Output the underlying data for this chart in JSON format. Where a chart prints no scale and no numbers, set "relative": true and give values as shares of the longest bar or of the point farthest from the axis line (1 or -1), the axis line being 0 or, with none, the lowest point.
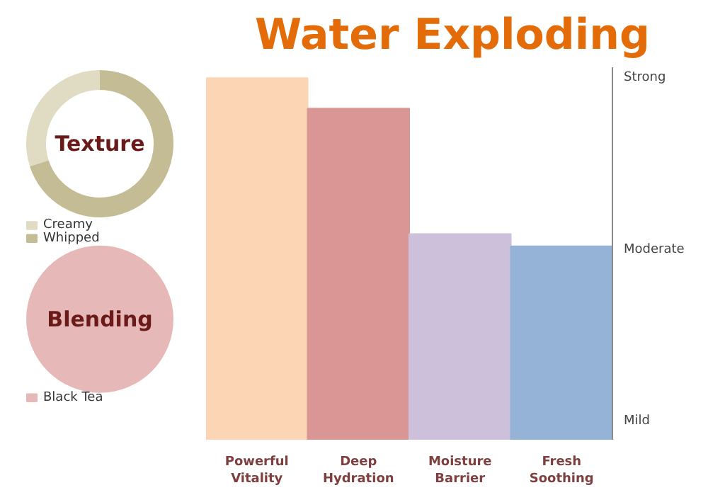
{
  "chart_data": [
    {
      "type": "donut",
      "title": "Texture",
      "categories": [
        "Creamy",
        "Whipped"
      ],
      "values": [
        30,
        70
      ],
      "colors": [
        "#e0dbc3",
        "#c4bc94"
      ],
      "legend": "bottom"
    },
    {
      "type": "pie",
      "title": "Blending",
      "categories": [
        "Black Tea"
      ],
      "values": [
        100
      ],
      "colors": [
        "#e6b8b7"
      ],
      "legend": "bottom"
    },
    {
      "type": "bar",
      "relative": true,
      "title": "Water Exploding",
      "categories": [
        "Powerful Vitality",
        "Deep Hydration",
        "Moisture Barrier",
        "Fresh Soothing"
      ],
      "values": [
        1,
        0.916,
        0.569,
        0.535
      ],
      "colors": [
        "#fcd5b4",
        "#d99694",
        "#ccc0da",
        "#95b3d7"
      ],
      "annotations": [
        "Strong",
        "Moderate",
        "Mild"
      ]
    }
  ]
}
